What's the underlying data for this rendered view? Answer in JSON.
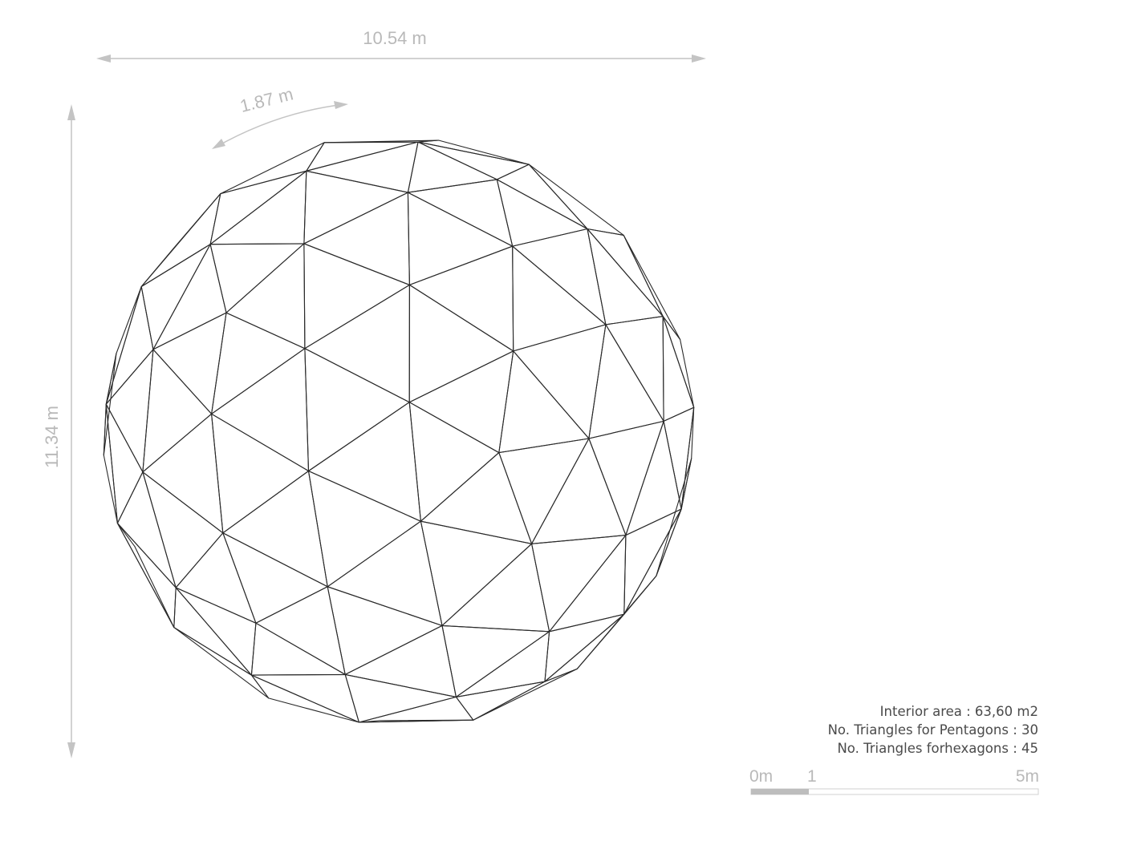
{
  "dimensions": {
    "width": "10.54 m",
    "height": "11.34 m",
    "edge": "1.87 m"
  },
  "info": {
    "interior_area": "Interior area : 63,60 m2",
    "pentagon_triangles": "No. Triangles for Pentagons : 30",
    "hexagon_triangles": "No. Triangles forhexagons : 45"
  },
  "scale_bar": {
    "label_start": "0m",
    "label_mid": "1",
    "label_end": "5m"
  },
  "colors": {
    "dimension": "#b9b9b9",
    "structure": "#2a2a2a",
    "text": "#4a4a4a"
  }
}
